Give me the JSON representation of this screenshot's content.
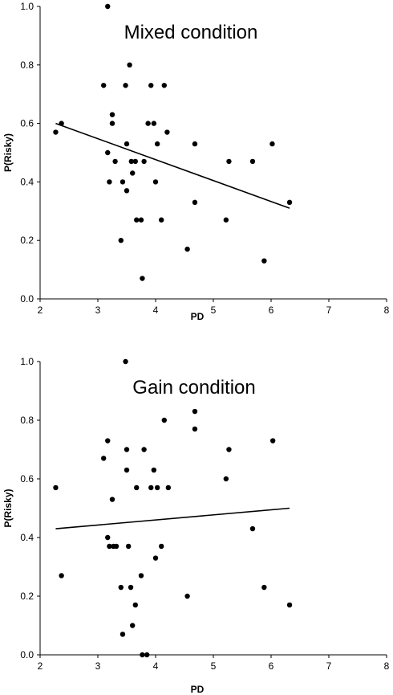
{
  "chart_data": [
    {
      "type": "scatter",
      "title": "Mixed condition",
      "xlabel": "PD",
      "ylabel": "P(Risky)",
      "xlim": [
        2,
        8
      ],
      "ylim": [
        0,
        1.0
      ],
      "xticks": [
        "2",
        "3",
        "4",
        "5",
        "6",
        "7",
        "8"
      ],
      "yticks": [
        "0.0",
        "0.2",
        "0.4",
        "0.6",
        "0.8",
        "1.0"
      ],
      "grid": false,
      "legend": "none",
      "points": [
        [
          2.27,
          0.57
        ],
        [
          2.37,
          0.6
        ],
        [
          3.1,
          0.73
        ],
        [
          3.17,
          1.0
        ],
        [
          3.17,
          0.5
        ],
        [
          3.2,
          0.4
        ],
        [
          3.25,
          0.63
        ],
        [
          3.25,
          0.6
        ],
        [
          3.3,
          0.47
        ],
        [
          3.4,
          0.2
        ],
        [
          3.43,
          0.4
        ],
        [
          3.48,
          0.73
        ],
        [
          3.5,
          0.53
        ],
        [
          3.5,
          0.37
        ],
        [
          3.55,
          0.8
        ],
        [
          3.58,
          0.47
        ],
        [
          3.6,
          0.43
        ],
        [
          3.65,
          0.47
        ],
        [
          3.67,
          0.27
        ],
        [
          3.75,
          0.27
        ],
        [
          3.77,
          0.07
        ],
        [
          3.8,
          0.47
        ],
        [
          3.87,
          0.6
        ],
        [
          3.92,
          0.73
        ],
        [
          3.97,
          0.6
        ],
        [
          4.0,
          0.4
        ],
        [
          4.03,
          0.53
        ],
        [
          4.1,
          0.27
        ],
        [
          4.15,
          0.73
        ],
        [
          4.2,
          0.57
        ],
        [
          4.55,
          0.17
        ],
        [
          4.68,
          0.53
        ],
        [
          4.68,
          0.33
        ],
        [
          5.22,
          0.27
        ],
        [
          5.27,
          0.47
        ],
        [
          5.68,
          0.47
        ],
        [
          5.88,
          0.13
        ],
        [
          6.02,
          0.53
        ],
        [
          6.32,
          0.33
        ]
      ],
      "trendline": [
        [
          2.27,
          0.6
        ],
        [
          6.32,
          0.31
        ]
      ]
    },
    {
      "type": "scatter",
      "title": "Gain condition",
      "xlabel": "PD",
      "ylabel": "P(Risky)",
      "xlim": [
        2,
        8
      ],
      "ylim": [
        0,
        1.0
      ],
      "xticks": [
        "2",
        "3",
        "4",
        "5",
        "6",
        "7",
        "8"
      ],
      "yticks": [
        "0.0",
        "0.2",
        "0.4",
        "0.6",
        "0.8",
        "1.0"
      ],
      "grid": false,
      "legend": "none",
      "points": [
        [
          2.27,
          0.57
        ],
        [
          2.37,
          0.27
        ],
        [
          3.1,
          0.67
        ],
        [
          3.17,
          0.73
        ],
        [
          3.17,
          0.4
        ],
        [
          3.2,
          0.37
        ],
        [
          3.25,
          0.53
        ],
        [
          3.27,
          0.37
        ],
        [
          3.32,
          0.37
        ],
        [
          3.4,
          0.23
        ],
        [
          3.43,
          0.07
        ],
        [
          3.48,
          1.0
        ],
        [
          3.5,
          0.7
        ],
        [
          3.5,
          0.63
        ],
        [
          3.53,
          0.37
        ],
        [
          3.57,
          0.23
        ],
        [
          3.6,
          0.1
        ],
        [
          3.65,
          0.17
        ],
        [
          3.67,
          0.57
        ],
        [
          3.75,
          0.27
        ],
        [
          3.77,
          0.0
        ],
        [
          3.8,
          0.7
        ],
        [
          3.85,
          0.0
        ],
        [
          3.92,
          0.57
        ],
        [
          3.97,
          0.63
        ],
        [
          4.0,
          0.33
        ],
        [
          4.03,
          0.57
        ],
        [
          4.1,
          0.37
        ],
        [
          4.15,
          0.8
        ],
        [
          4.22,
          0.57
        ],
        [
          4.55,
          0.2
        ],
        [
          4.68,
          0.83
        ],
        [
          4.68,
          0.77
        ],
        [
          5.22,
          0.6
        ],
        [
          5.27,
          0.7
        ],
        [
          5.68,
          0.43
        ],
        [
          5.88,
          0.23
        ],
        [
          6.03,
          0.73
        ],
        [
          6.32,
          0.17
        ]
      ],
      "trendline": [
        [
          2.27,
          0.43
        ],
        [
          6.32,
          0.5
        ]
      ]
    }
  ]
}
